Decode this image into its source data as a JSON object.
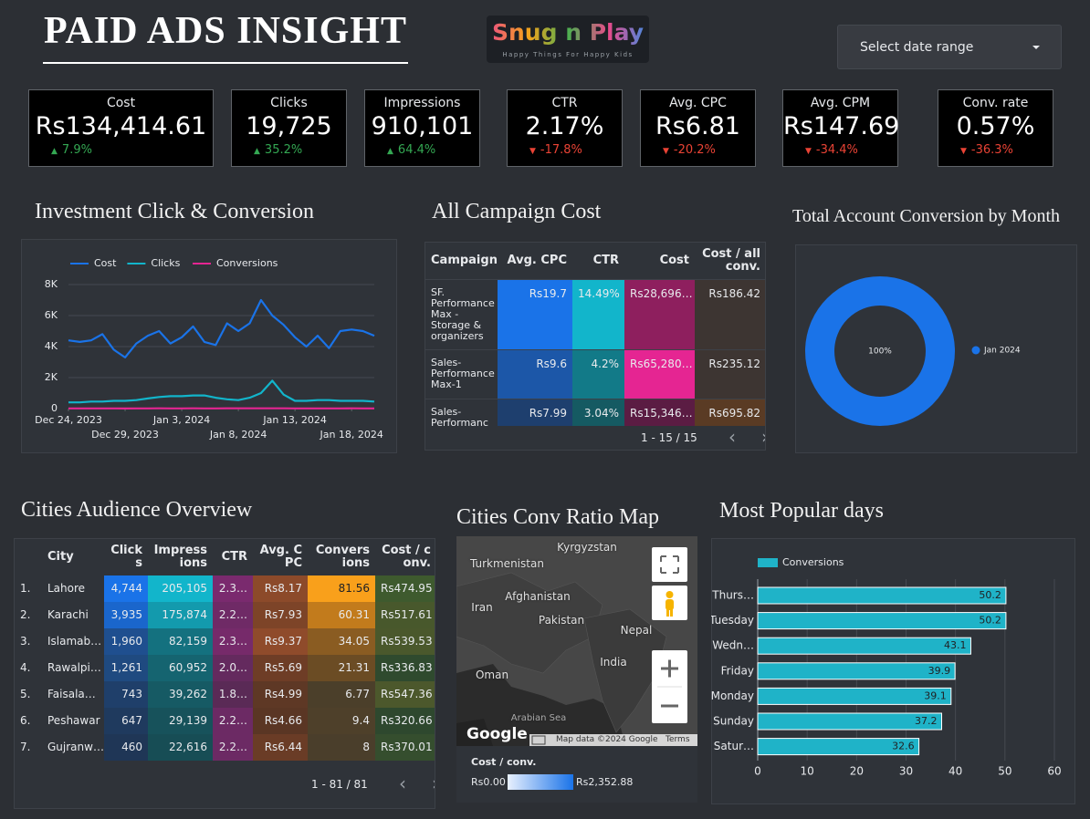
{
  "header": {
    "title": "PAID ADS INSIGHT",
    "logo": "Snug n Play",
    "tagline": "Happy Things For Happy Kids",
    "date_selector": "Select date range"
  },
  "kpis": [
    {
      "label": "Cost",
      "value": "Rs134,414.61",
      "change": "7.9%",
      "trend": "up"
    },
    {
      "label": "Clicks",
      "value": "19,725",
      "change": "35.2%",
      "trend": "up"
    },
    {
      "label": "Impressions",
      "value": "910,101",
      "change": "64.4%",
      "trend": "up"
    },
    {
      "label": "CTR",
      "value": "2.17%",
      "change": "-17.8%",
      "trend": "down"
    },
    {
      "label": "Avg. CPC",
      "value": "Rs6.81",
      "change": "-20.2%",
      "trend": "down"
    },
    {
      "label": "Avg. CPM",
      "value": "Rs147.69",
      "change": "-34.4%",
      "trend": "down"
    },
    {
      "label": "Conv. rate",
      "value": "0.57%",
      "change": "-36.3%",
      "trend": "down"
    }
  ],
  "chart_data": [
    {
      "type": "line",
      "title": "Investment Click & Conversion",
      "x": [
        "2023-12-24",
        "2023-12-25",
        "2023-12-26",
        "2023-12-27",
        "2023-12-28",
        "2023-12-29",
        "2023-12-30",
        "2023-12-31",
        "2024-01-01",
        "2024-01-02",
        "2024-01-03",
        "2024-01-04",
        "2024-01-05",
        "2024-01-06",
        "2024-01-07",
        "2024-01-08",
        "2024-01-09",
        "2024-01-10",
        "2024-01-11",
        "2024-01-12",
        "2024-01-13",
        "2024-01-14",
        "2024-01-15",
        "2024-01-16",
        "2024-01-17",
        "2024-01-18",
        "2024-01-19",
        "2024-01-20"
      ],
      "xlim": [
        "2023-12-24",
        "2024-01-20"
      ],
      "xticks": [
        {
          "value": "2023-12-24",
          "label": "Dec 24, 2023"
        },
        {
          "value": "2023-12-29",
          "label": "Dec 29, 2023"
        },
        {
          "value": "2024-01-03",
          "label": "Jan 3, 2024"
        },
        {
          "value": "2024-01-08",
          "label": "Jan 8, 2024"
        },
        {
          "value": "2024-01-13",
          "label": "Jan 13, 2024"
        },
        {
          "value": "2024-01-18",
          "label": "Jan 18, 2024"
        }
      ],
      "ylim": [
        0,
        8000
      ],
      "yticks": [
        0,
        {
          "value": 2000,
          "label": "2K"
        },
        {
          "value": 4000,
          "label": "4K"
        },
        {
          "value": 6000,
          "label": "6K"
        },
        {
          "value": 8000,
          "label": "8K"
        }
      ],
      "grid": true,
      "series": [
        {
          "name": "Cost",
          "color": "#1a73e8",
          "values": [
            4400,
            4300,
            4400,
            4800,
            3800,
            3300,
            4200,
            4700,
            5000,
            4200,
            4600,
            5300,
            4300,
            4100,
            5500,
            5000,
            5500,
            7000,
            6000,
            5400,
            4600,
            4000,
            4700,
            3900,
            5000,
            5100,
            5000,
            4700
          ]
        },
        {
          "name": "Clicks",
          "color": "#12b5cb",
          "values": [
            400,
            400,
            450,
            450,
            500,
            500,
            550,
            650,
            750,
            800,
            800,
            850,
            850,
            700,
            600,
            550,
            700,
            1000,
            1800,
            900,
            500,
            500,
            550,
            550,
            500,
            500,
            500,
            450
          ]
        },
        {
          "name": "Conversions",
          "color": "#e52592",
          "values": [
            12,
            10,
            11,
            14,
            9,
            8,
            11,
            13,
            15,
            12,
            14,
            16,
            11,
            10,
            15,
            18,
            16,
            20,
            17,
            15,
            12,
            11,
            13,
            10,
            14,
            15,
            14,
            12
          ]
        }
      ]
    },
    {
      "type": "pie",
      "title": "Total Account Conversion by Month",
      "categories": [
        "Jan 2024"
      ],
      "values": [
        100
      ],
      "value_labels": [
        "100%"
      ],
      "colors": [
        "#1a73e8"
      ],
      "donut": true
    },
    {
      "type": "bar",
      "orientation": "horizontal",
      "title": "Most Popular days",
      "categories": [
        "Thurs…",
        "Tuesday",
        "Wedn…",
        "Friday",
        "Monday",
        "Sunday",
        "Satur…"
      ],
      "series": [
        {
          "name": "Conversions",
          "color": "#1fb3c8",
          "values": [
            50.2,
            50.2,
            43.1,
            39.9,
            39.1,
            37.2,
            32.6
          ]
        }
      ],
      "xlim": [
        0,
        60
      ],
      "xticks": [
        0,
        10,
        20,
        30,
        40,
        50,
        60
      ],
      "grid": true
    }
  ],
  "campaign_table": {
    "title": "All Campaign Cost",
    "columns": [
      "Campaign",
      "Avg. CPC",
      "CTR",
      "Cost",
      "Cost / all conv."
    ],
    "rows": [
      [
        "SF. Performance Max - Storage & organizers",
        "Rs19.7",
        "14.49%",
        "Rs28,696…",
        "Rs186.42"
      ],
      [
        "Sales-Performance Max-1",
        "Rs9.6",
        "4.2%",
        "Rs65,280…",
        "Rs235.12"
      ],
      [
        "Sales-Performanc",
        "Rs7.99",
        "3.04%",
        "Rs15,346…",
        "Rs695.82"
      ]
    ],
    "pagination": "1 - 15 / 15"
  },
  "cities_table": {
    "title": "Cities Audience Overview",
    "columns": [
      "City",
      "Clicks",
      "Impressions",
      "CTR",
      "Avg. CPC",
      "Conversions",
      "Cost / conv."
    ],
    "rows": [
      [
        "1.",
        "Lahore",
        "4,744",
        "205,105",
        "2.3…",
        "Rs8.17",
        "81.56",
        "Rs474.95"
      ],
      [
        "2.",
        "Karachi",
        "3,935",
        "175,874",
        "2.2…",
        "Rs7.93",
        "60.31",
        "Rs517.61"
      ],
      [
        "3.",
        "Islamab…",
        "1,960",
        "82,159",
        "2.3…",
        "Rs9.37",
        "34.05",
        "Rs539.53"
      ],
      [
        "4.",
        "Rawalpi…",
        "1,261",
        "60,952",
        "2.0…",
        "Rs5.69",
        "21.31",
        "Rs336.83"
      ],
      [
        "5.",
        "Faisala…",
        "743",
        "39,262",
        "1.8…",
        "Rs4.99",
        "6.77",
        "Rs547.36"
      ],
      [
        "6.",
        "Peshawar",
        "647",
        "29,139",
        "2.2…",
        "Rs4.66",
        "9.4",
        "Rs320.66"
      ],
      [
        "7.",
        "Gujranw…",
        "460",
        "22,616",
        "2.2…",
        "Rs6.44",
        "8",
        "Rs370.01"
      ]
    ],
    "pagination": "1 - 81 / 81"
  },
  "map": {
    "title": "Cities Conv Ratio Map",
    "places": [
      "Kyrgyzstan",
      "Turkmenistan",
      "Afghanistan",
      "Iran",
      "Pakistan",
      "Nepal",
      "India",
      "Oman",
      "Arabian Sea"
    ],
    "brand": "Google",
    "attribution": "Map data ©2024 Google",
    "terms": "Terms",
    "legend": {
      "title": "Cost / conv.",
      "min": "Rs0.00",
      "max": "Rs2,352.88"
    }
  }
}
